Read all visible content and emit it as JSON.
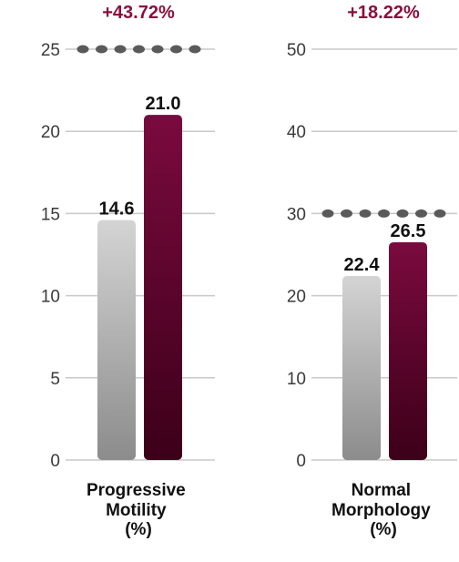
{
  "chart_data": [
    {
      "type": "bar",
      "title": "+43.72%",
      "category_label": [
        "Progressive",
        "Motility",
        "(%)"
      ],
      "ylim": [
        0,
        25
      ],
      "yticks": [
        "0",
        "5",
        "10",
        "15",
        "20",
        "25"
      ],
      "reference_line": 25,
      "values": [
        14.6,
        21.0
      ],
      "value_labels": [
        "14.6",
        "21.0"
      ],
      "grid": true
    },
    {
      "type": "bar",
      "title": "+18.22%",
      "category_label": [
        "Normal",
        "Morphology",
        "(%)"
      ],
      "ylim": [
        0,
        50
      ],
      "yticks": [
        "0",
        "10",
        "20",
        "30",
        "40",
        "50"
      ],
      "reference_line": 30,
      "values": [
        22.4,
        26.5
      ],
      "value_labels": [
        "22.4",
        "26.5"
      ],
      "grid": true
    }
  ],
  "colors": {
    "bar_1_top": "#d4d4d4",
    "bar_1_bottom": "#8c8c8c",
    "bar_2_top": "#7a0a3e",
    "bar_2_bottom": "#3c0019",
    "title": "#8a0f3e",
    "grid": "#c9c9c9",
    "reference_dots": "#5a5a5a"
  }
}
